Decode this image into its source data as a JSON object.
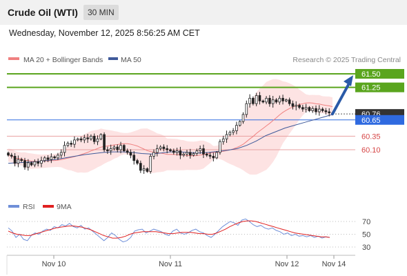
{
  "header": {
    "title": "Crude Oil (WTI)",
    "interval": "30 MIN",
    "datetime": "Wednesday, November 12, 2025 8:56:25 AM CET"
  },
  "credit": "Research © 2025 Trading Central",
  "colors": {
    "resistance": "#5aa51e",
    "support": "#d64545",
    "pivot": "#2f6ae0",
    "last": "#333333",
    "candle": "#222222",
    "bollinger_fill": "#fde3e3",
    "ma20": "#f08080",
    "ma50": "#3f5a9a",
    "rsi": "#6f8fd8",
    "rsi_ma": "#e02020",
    "arrow": "#2a5aa8"
  },
  "chart_data": [
    {
      "type": "candlestick",
      "title": "Crude Oil (WTI)",
      "timeframe": "30 MIN",
      "legend": [
        {
          "name": "MA 20 + Bollinger Bands",
          "color": "#f08080"
        },
        {
          "name": "MA 50",
          "color": "#3f5a9a"
        }
      ],
      "x_tick_labels": [
        "Nov 10",
        "Nov 11",
        "Nov 12",
        "Nov 14"
      ],
      "y_range": [
        59.6,
        61.6
      ],
      "levels": [
        {
          "value": 61.5,
          "label": "61.50",
          "kind": "resistance"
        },
        {
          "value": 61.25,
          "label": "61.25",
          "kind": "resistance"
        },
        {
          "value": 60.76,
          "label": "60.76",
          "kind": "last"
        },
        {
          "value": 60.65,
          "label": "60.65",
          "kind": "pivot"
        },
        {
          "value": 60.35,
          "label": "60.35",
          "kind": "support"
        },
        {
          "value": 60.1,
          "label": "60.10",
          "kind": "support"
        }
      ],
      "close": [
        60.0,
        59.98,
        59.85,
        59.92,
        59.9,
        59.78,
        59.86,
        59.82,
        59.88,
        59.85,
        59.9,
        59.95,
        59.92,
        59.97,
        59.95,
        60.0,
        60.05,
        60.18,
        60.22,
        60.2,
        60.28,
        60.3,
        60.28,
        60.32,
        60.3,
        60.35,
        60.25,
        60.3,
        60.38,
        60.1,
        60.08,
        60.12,
        60.15,
        60.1,
        60.18,
        60.08,
        60.05,
        60.0,
        59.9,
        59.85,
        59.72,
        59.75,
        59.7,
        59.98,
        60.05,
        60.12,
        60.15,
        60.12,
        60.1,
        60.08,
        60.05,
        60.08,
        60.0,
        60.02,
        60.05,
        60.0,
        60.03,
        60.08,
        60.12,
        60.02,
        60.0,
        59.98,
        59.95,
        60.05,
        60.25,
        60.3,
        60.38,
        60.42,
        60.45,
        60.55,
        60.62,
        60.75,
        60.95,
        61.05,
        60.95,
        61.1,
        61.0,
        60.98,
        61.05,
        60.95,
        61.02,
        60.98,
        61.05,
        61.0,
        61.02,
        60.95,
        60.9,
        60.92,
        60.88,
        60.85,
        60.88,
        60.82,
        60.86,
        60.8,
        60.85,
        60.82,
        60.8,
        60.78,
        60.76
      ],
      "ma50": [
        59.85,
        59.86,
        59.87,
        59.88,
        59.9,
        59.92,
        59.95,
        59.98,
        60.01,
        60.03,
        60.05,
        60.06,
        60.06,
        60.05,
        60.03,
        60.02,
        60.04,
        60.06,
        60.06,
        60.05,
        60.04,
        60.05,
        60.07,
        60.09,
        60.12,
        60.18,
        60.26,
        60.36,
        60.43,
        60.5,
        60.55,
        60.6,
        60.65,
        60.7,
        60.75
      ],
      "annotation": {
        "type": "arrow",
        "target": 61.5,
        "direction": "up"
      }
    },
    {
      "type": "line",
      "title": "RSI",
      "legend": [
        {
          "name": "RSI",
          "color": "#6f8fd8"
        },
        {
          "name": "9MA",
          "color": "#e02020"
        }
      ],
      "y_range": [
        20,
        80
      ],
      "y_ticks": [
        70,
        50,
        30
      ],
      "rsi": [
        60,
        55,
        45,
        50,
        42,
        40,
        48,
        52,
        50,
        55,
        58,
        56,
        62,
        60,
        65,
        63,
        67,
        62,
        60,
        64,
        58,
        60,
        55,
        50,
        45,
        40,
        45,
        52,
        48,
        42,
        38,
        40,
        45,
        55,
        57,
        58,
        52,
        55,
        58,
        56,
        54,
        50,
        48,
        55,
        58,
        52,
        50,
        52,
        56,
        58,
        54,
        52,
        48,
        45,
        50,
        56,
        62,
        66,
        70,
        68,
        64,
        72,
        74,
        70,
        65,
        62,
        64,
        60,
        58,
        60,
        56,
        54,
        50,
        52,
        48,
        50,
        47,
        48,
        46,
        48,
        45,
        47,
        44,
        46,
        45
      ],
      "rsi_9ma": [
        55,
        52,
        50,
        49,
        48,
        48,
        50,
        52,
        54,
        56,
        58,
        60,
        61,
        62,
        63,
        63,
        62,
        61,
        59,
        57,
        54,
        51,
        48,
        46,
        44,
        44,
        45,
        47,
        50,
        52,
        53,
        54,
        54,
        54,
        54,
        53,
        52,
        51,
        51,
        52,
        53,
        53,
        53,
        52,
        51,
        51,
        50,
        50,
        52,
        55,
        58,
        62,
        65,
        68,
        70,
        71,
        71,
        70,
        68,
        66,
        64,
        62,
        60,
        58,
        56,
        54,
        52,
        51,
        50,
        49,
        48,
        47,
        46,
        46,
        45
      ]
    }
  ]
}
